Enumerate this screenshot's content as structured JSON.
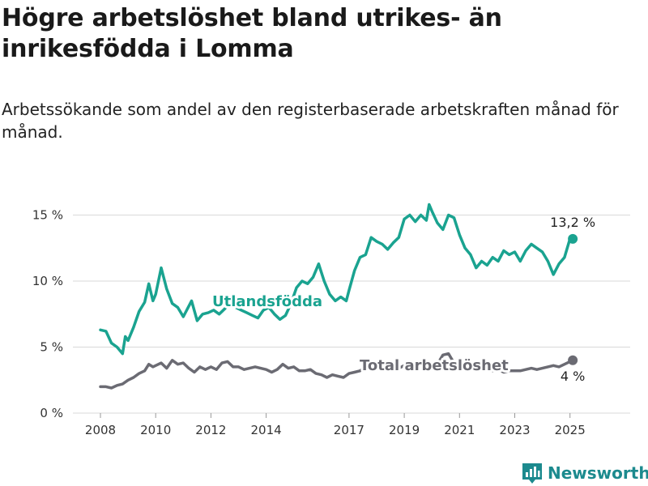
{
  "header": {
    "title": "Högre arbetslöshet bland utrikes- än inrikesfödda i Lomma",
    "subtitle": "Arbetssökande som andel av den registerbaserade arbetskraften månad för månad."
  },
  "brand": {
    "name": "Newsworthy",
    "icon": "newsworthy-logo-icon",
    "color": "#1c8a8e"
  },
  "chart_data": {
    "type": "line",
    "title": "Högre arbetslöshet bland utrikes- än inrikesfödda i Lomma",
    "subtitle": "Arbetssökande som andel av den registerbaserade arbetskraften månad för månad.",
    "xlabel": "",
    "ylabel": "",
    "ylim": [
      0,
      17
    ],
    "yticks": [
      0,
      5,
      10,
      15
    ],
    "ytick_labels": [
      "0 %",
      "5 %",
      "10 %",
      "15 %"
    ],
    "xlim": [
      2007.75,
      2026.0
    ],
    "xticks": [
      2008,
      2010,
      2012,
      2014,
      2017,
      2019,
      2021,
      2023,
      2025
    ],
    "xtick_labels": [
      "2008",
      "2010",
      "2012",
      "2014",
      "2017",
      "2019",
      "2021",
      "2023",
      "2025"
    ],
    "grid": true,
    "legend": "inline labels",
    "series": [
      {
        "name": "Utlandsfödda",
        "color": "#1aa390",
        "end_label": "13,2 %",
        "end_value": 13.2,
        "x": [
          2008.0,
          2008.2,
          2008.4,
          2008.6,
          2008.8,
          2008.9,
          2009.0,
          2009.2,
          2009.4,
          2009.6,
          2009.75,
          2009.9,
          2010.0,
          2010.2,
          2010.4,
          2010.6,
          2010.8,
          2011.0,
          2011.1,
          2011.3,
          2011.5,
          2011.7,
          2011.9,
          2012.1,
          2012.3,
          2012.5,
          2012.7,
          2012.9,
          2013.1,
          2013.3,
          2013.5,
          2013.7,
          2013.9,
          2014.1,
          2014.3,
          2014.5,
          2014.7,
          2014.9,
          2015.1,
          2015.3,
          2015.5,
          2015.7,
          2015.9,
          2016.1,
          2016.3,
          2016.5,
          2016.7,
          2016.9,
          2017.0,
          2017.2,
          2017.4,
          2017.6,
          2017.8,
          2018.0,
          2018.2,
          2018.4,
          2018.6,
          2018.8,
          2019.0,
          2019.2,
          2019.4,
          2019.6,
          2019.8,
          2019.9,
          2020.0,
          2020.2,
          2020.4,
          2020.6,
          2020.8,
          2021.0,
          2021.2,
          2021.4,
          2021.6,
          2021.8,
          2022.0,
          2022.2,
          2022.4,
          2022.6,
          2022.8,
          2023.0,
          2023.2,
          2023.4,
          2023.6,
          2023.8,
          2024.0,
          2024.2,
          2024.4,
          2024.6,
          2024.8,
          2025.0,
          2025.1
        ],
        "values": [
          6.3,
          6.2,
          5.3,
          5.0,
          4.5,
          5.8,
          5.5,
          6.5,
          7.7,
          8.4,
          9.8,
          8.5,
          9.0,
          11.0,
          9.4,
          8.3,
          8.0,
          7.3,
          7.7,
          8.5,
          7.0,
          7.5,
          7.6,
          7.8,
          7.5,
          7.9,
          8.4,
          8.0,
          7.8,
          7.6,
          7.4,
          7.2,
          7.8,
          8.0,
          7.5,
          7.1,
          7.4,
          8.3,
          9.5,
          10.0,
          9.8,
          10.3,
          11.3,
          10.0,
          9.0,
          8.5,
          8.8,
          8.5,
          9.3,
          10.8,
          11.8,
          12.0,
          13.3,
          13.0,
          12.8,
          12.4,
          12.9,
          13.3,
          14.7,
          15.0,
          14.5,
          15.0,
          14.6,
          15.8,
          15.3,
          14.4,
          13.9,
          15.0,
          14.8,
          13.5,
          12.5,
          12.0,
          11.0,
          11.5,
          11.2,
          11.8,
          11.5,
          12.3,
          12.0,
          12.2,
          11.5,
          12.3,
          12.8,
          12.5,
          12.2,
          11.5,
          10.5,
          11.3,
          11.8,
          13.2,
          13.2
        ]
      },
      {
        "name": "Total arbetslöshet",
        "color": "#6b6b73",
        "end_label": "4 %",
        "end_value": 4.0,
        "x": [
          2008.0,
          2008.2,
          2008.4,
          2008.6,
          2008.8,
          2009.0,
          2009.2,
          2009.4,
          2009.6,
          2009.75,
          2009.9,
          2010.0,
          2010.2,
          2010.4,
          2010.6,
          2010.8,
          2011.0,
          2011.2,
          2011.4,
          2011.6,
          2011.8,
          2012.0,
          2012.2,
          2012.4,
          2012.6,
          2012.8,
          2013.0,
          2013.2,
          2013.4,
          2013.6,
          2013.8,
          2014.0,
          2014.2,
          2014.4,
          2014.6,
          2014.8,
          2015.0,
          2015.2,
          2015.4,
          2015.6,
          2015.8,
          2016.0,
          2016.2,
          2016.4,
          2016.6,
          2016.8,
          2017.0,
          2017.2,
          2017.4,
          2017.6,
          2017.8,
          2018.0,
          2018.2,
          2018.4,
          2018.6,
          2018.8,
          2019.0,
          2019.2,
          2019.4,
          2019.6,
          2019.8,
          2020.0,
          2020.2,
          2020.4,
          2020.6,
          2020.8,
          2021.0,
          2021.2,
          2021.4,
          2021.6,
          2021.8,
          2022.0,
          2022.2,
          2022.4,
          2022.6,
          2022.8,
          2023.0,
          2023.2,
          2023.4,
          2023.6,
          2023.8,
          2024.0,
          2024.2,
          2024.4,
          2024.6,
          2024.8,
          2025.0,
          2025.1
        ],
        "values": [
          2.0,
          2.0,
          1.9,
          2.1,
          2.2,
          2.5,
          2.7,
          3.0,
          3.2,
          3.7,
          3.5,
          3.6,
          3.8,
          3.4,
          4.0,
          3.7,
          3.8,
          3.4,
          3.1,
          3.5,
          3.3,
          3.5,
          3.3,
          3.8,
          3.9,
          3.5,
          3.5,
          3.3,
          3.4,
          3.5,
          3.4,
          3.3,
          3.1,
          3.3,
          3.7,
          3.4,
          3.5,
          3.2,
          3.2,
          3.3,
          3.0,
          2.9,
          2.7,
          2.9,
          2.8,
          2.7,
          3.0,
          3.1,
          3.2,
          3.5,
          3.4,
          3.3,
          3.4,
          3.3,
          3.5,
          3.4,
          3.6,
          3.7,
          3.4,
          3.6,
          3.5,
          3.5,
          3.7,
          4.4,
          4.5,
          3.8,
          3.5,
          3.4,
          3.3,
          3.2,
          3.3,
          3.3,
          3.2,
          3.3,
          3.1,
          3.2,
          3.2,
          3.2,
          3.3,
          3.4,
          3.3,
          3.4,
          3.5,
          3.6,
          3.5,
          3.7,
          3.9,
          4.0
        ]
      }
    ]
  }
}
